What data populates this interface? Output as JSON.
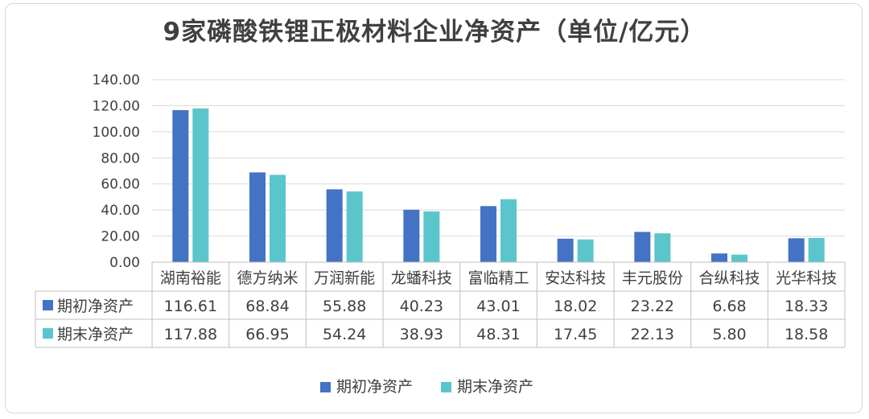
{
  "chart_data": {
    "type": "bar",
    "title": "9家磷酸铁锂正极材料企业净资产（单位/亿元）",
    "categories": [
      "湖南裕能",
      "德方纳米",
      "万润新能",
      "龙蟠科技",
      "富临精工",
      "安达科技",
      "丰元股份",
      "合纵科技",
      "光华科技"
    ],
    "series": [
      {
        "name": "期初净资产",
        "color": "#4472c4",
        "values": [
          116.61,
          68.84,
          55.88,
          40.23,
          43.01,
          18.02,
          23.22,
          6.68,
          18.33
        ],
        "labels": [
          "116.61",
          "68.84",
          "55.88",
          "40.23",
          "43.01",
          "18.02",
          "23.22",
          "6.68",
          "18.33"
        ]
      },
      {
        "name": "期末净资产",
        "color": "#5bc5cc",
        "values": [
          117.88,
          66.95,
          54.24,
          38.93,
          48.31,
          17.45,
          22.13,
          5.8,
          18.58
        ],
        "labels": [
          "117.88",
          "66.95",
          "54.24",
          "38.93",
          "48.31",
          "17.45",
          "22.13",
          "5.80",
          "18.58"
        ]
      }
    ],
    "ylim": [
      0,
      140
    ],
    "yticks": [
      "0.00",
      "20.00",
      "40.00",
      "60.00",
      "80.00",
      "100.00",
      "120.00",
      "140.00"
    ],
    "grid": true,
    "legend": "bottom",
    "data_table": true
  }
}
